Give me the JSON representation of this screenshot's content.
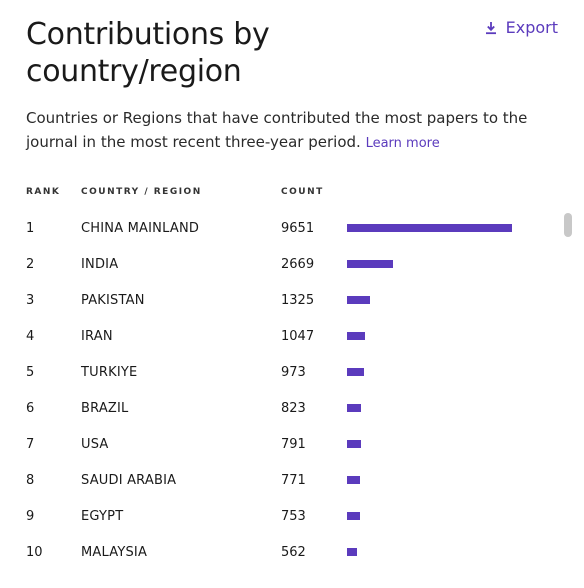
{
  "header": {
    "title": "Contributions by country/region",
    "export_label": "Export",
    "export_icon": "download-icon"
  },
  "description": {
    "text": "Countries or Regions that have contributed the most papers to the journal in the most recent three-year period.",
    "link_label": "Learn more"
  },
  "table": {
    "columns": {
      "rank": "RANK",
      "country": "COUNTRY / REGION",
      "count": "COUNT"
    },
    "accent_color": "#5b3bbd",
    "rows": [
      {
        "rank": "1",
        "country": "CHINA MAINLAND",
        "count": "9651",
        "value": 9651
      },
      {
        "rank": "2",
        "country": "INDIA",
        "count": "2669",
        "value": 2669
      },
      {
        "rank": "3",
        "country": "PAKISTAN",
        "count": "1325",
        "value": 1325
      },
      {
        "rank": "4",
        "country": "IRAN",
        "count": "1047",
        "value": 1047
      },
      {
        "rank": "5",
        "country": "TURKIYE",
        "count": "973",
        "value": 973
      },
      {
        "rank": "6",
        "country": "BRAZIL",
        "count": "823",
        "value": 823
      },
      {
        "rank": "7",
        "country": "USA",
        "count": "791",
        "value": 791
      },
      {
        "rank": "8",
        "country": "SAUDI ARABIA",
        "count": "771",
        "value": 771
      },
      {
        "rank": "9",
        "country": "EGYPT",
        "count": "753",
        "value": 753
      },
      {
        "rank": "10",
        "country": "MALAYSIA",
        "count": "562",
        "value": 562
      }
    ]
  }
}
